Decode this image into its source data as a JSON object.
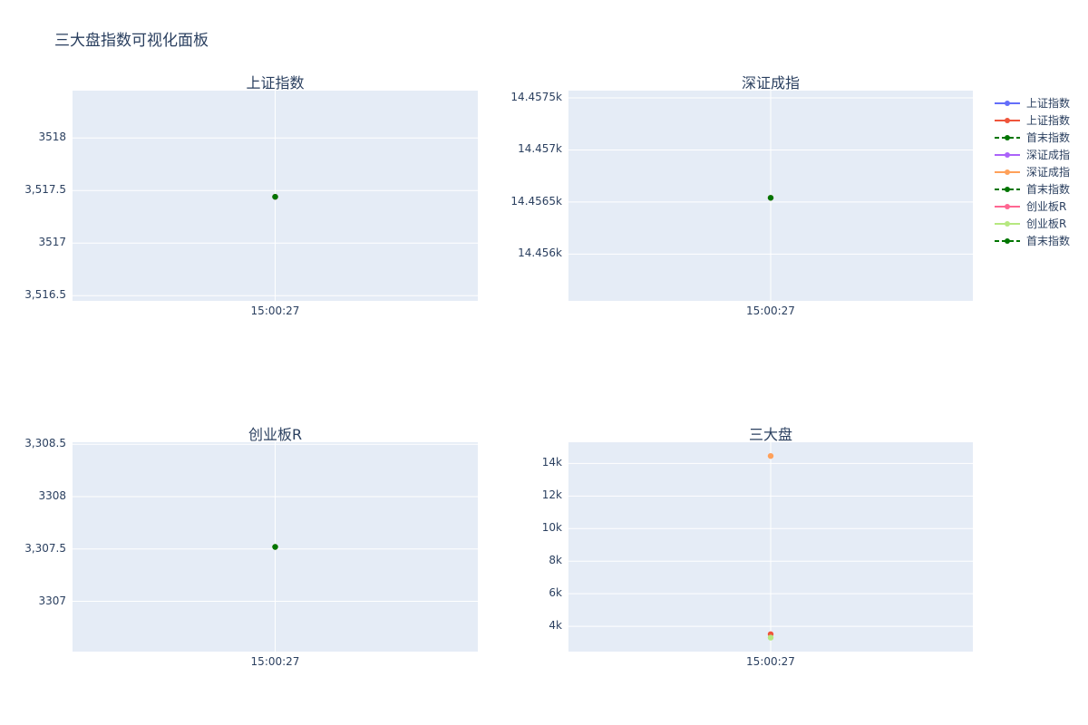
{
  "title": "三大盘指数可视化面板",
  "chart_data": [
    {
      "type": "line",
      "title": "上证指数",
      "x": [
        "15:00:27"
      ],
      "ylim": [
        3516.45,
        3518.45
      ],
      "yticks": [
        3516.5,
        3517,
        3517.5,
        3518
      ],
      "ytick_labels": [
        "3,516.5",
        "3517",
        "3,517.5",
        "3518"
      ],
      "series": [
        {
          "name": "上证指数",
          "values": [
            3517.44
          ],
          "color": "#636efa"
        },
        {
          "name": "上证指数",
          "values": [
            3517.44
          ],
          "color": "#ef553b"
        },
        {
          "name": "首末指数",
          "values": [
            3517.44
          ],
          "color": "#007500",
          "dash": true
        }
      ]
    },
    {
      "type": "line",
      "title": "深证成指",
      "x": [
        "15:00:27"
      ],
      "ylim": [
        14455.55,
        14457.57
      ],
      "yticks": [
        14456,
        14456.5,
        14457,
        14457.5
      ],
      "ytick_labels": [
        "14.456k",
        "14.4565k",
        "14.457k",
        "14.4575k"
      ],
      "series": [
        {
          "name": "深证成指",
          "values": [
            14456.54
          ],
          "color": "#ab63fa"
        },
        {
          "name": "深证成指",
          "values": [
            14456.54
          ],
          "color": "#ffa15a"
        },
        {
          "name": "首末指数",
          "values": [
            14456.54
          ],
          "color": "#007500",
          "dash": true
        }
      ]
    },
    {
      "type": "line",
      "title": "创业板R",
      "x": [
        "15:00:27"
      ],
      "ylim": [
        3306.52,
        3308.52
      ],
      "yticks": [
        3307,
        3307.5,
        3308,
        3308.5
      ],
      "ytick_labels": [
        "3307",
        "3,307.5",
        "3308",
        "3,308.5"
      ],
      "series": [
        {
          "name": "创业板R",
          "values": [
            3307.52
          ],
          "color": "#ff6692"
        },
        {
          "name": "创业板R",
          "values": [
            3307.52
          ],
          "color": "#b6e880"
        },
        {
          "name": "首末指数",
          "values": [
            3307.52
          ],
          "color": "#007500",
          "dash": true
        }
      ]
    },
    {
      "type": "scatter",
      "title": "三大盘",
      "x": [
        "15:00:27"
      ],
      "ylim": [
        2450,
        15300
      ],
      "yticks": [
        4000,
        6000,
        8000,
        10000,
        12000,
        14000
      ],
      "ytick_labels": [
        "4k",
        "6k",
        "8k",
        "10k",
        "12k",
        "14k"
      ],
      "series": [
        {
          "name": "上证指数",
          "values": [
            3517.44
          ],
          "color": "#ef553b"
        },
        {
          "name": "深证成指",
          "values": [
            14456.54
          ],
          "color": "#ffa15a"
        },
        {
          "name": "创业板R",
          "values": [
            3307.52
          ],
          "color": "#b6e880"
        }
      ]
    }
  ],
  "legend": [
    {
      "label": "上证指数",
      "color": "#636efa",
      "dash": false
    },
    {
      "label": "上证指数",
      "color": "#ef553b",
      "dash": false
    },
    {
      "label": "首末指数",
      "color": "#007500",
      "dash": true
    },
    {
      "label": "深证成指",
      "color": "#ab63fa",
      "dash": false
    },
    {
      "label": "深证成指",
      "color": "#ffa15a",
      "dash": false
    },
    {
      "label": "首末指数",
      "color": "#007500",
      "dash": true
    },
    {
      "label": "创业板R",
      "color": "#ff6692",
      "dash": false
    },
    {
      "label": "创业板R",
      "color": "#b6e880",
      "dash": false
    },
    {
      "label": "首末指数",
      "color": "#007500",
      "dash": true
    }
  ]
}
